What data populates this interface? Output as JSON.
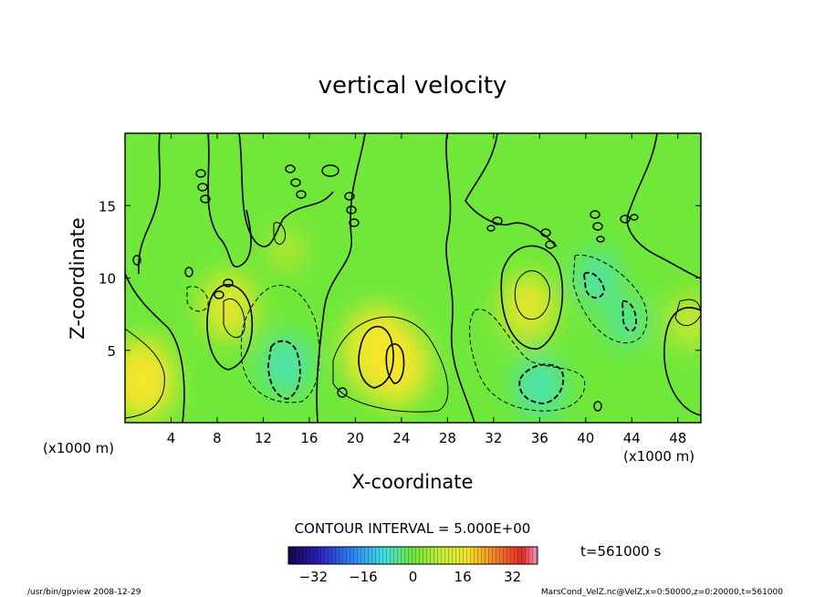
{
  "chart_data": {
    "type": "heatmap",
    "title": "vertical velocity",
    "xlabel": "X-coordinate",
    "ylabel": "Z-coordinate",
    "x_unit_left": "(x1000 m)",
    "x_unit_right": "(x1000 m)",
    "xlim": [
      0,
      50
    ],
    "ylim": [
      0,
      20
    ],
    "xticks": [
      4,
      8,
      12,
      16,
      20,
      24,
      28,
      32,
      36,
      40,
      44,
      48
    ],
    "yticks": [
      5,
      10,
      15
    ],
    "contour_interval_text": "CONTOUR INTERVAL = 5.000E+00",
    "time_text": "t=561000 s",
    "colorbar": {
      "min": -40,
      "max": 40,
      "ticks": [
        -32,
        -16,
        0,
        16,
        32
      ]
    },
    "features": [
      {
        "x": 1.5,
        "z": 3,
        "value": 20
      },
      {
        "x": 9,
        "z": 8,
        "value": 15
      },
      {
        "x": 14,
        "z": 4,
        "value": -12
      },
      {
        "x": 14,
        "z": 12,
        "value": 6
      },
      {
        "x": 22,
        "z": 5,
        "value": 22
      },
      {
        "x": 23.5,
        "z": 4,
        "value": 20
      },
      {
        "x": 35,
        "z": 8,
        "value": 15
      },
      {
        "x": 36,
        "z": 2.5,
        "value": -12
      },
      {
        "x": 41,
        "z": 10,
        "value": -10
      },
      {
        "x": 43.5,
        "z": 7,
        "value": -8
      },
      {
        "x": 49,
        "z": 7,
        "value": 10
      }
    ],
    "colors": {
      "background_field": "#6fe83a",
      "positive": "#f4e62a",
      "negative": "#3fe0d6"
    }
  },
  "footer": {
    "left": "/usr/bin/gpview  2008-12-29",
    "right": "MarsCond_VelZ.nc@VelZ,x=0:50000,z=0:20000,t=561000"
  }
}
